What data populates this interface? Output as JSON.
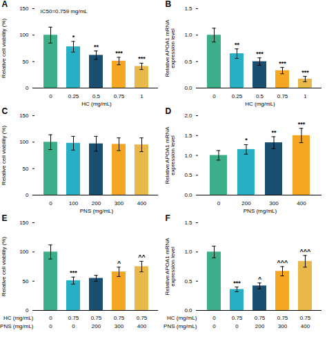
{
  "chart_data": [
    {
      "type": "bar",
      "title": "A",
      "annotation": "IC50=0.759 mg/mL",
      "xlabel": "HC (mg/mL)",
      "ylabel": "Relative cell viability (%)",
      "categories": [
        "0",
        "0.25",
        "0.5",
        "0.75",
        "1"
      ],
      "values": [
        100,
        78,
        62,
        51,
        41
      ],
      "errors": [
        15,
        10,
        8,
        7,
        6
      ],
      "colors": [
        "#3dae8a",
        "#29afc4",
        "#1b4f72",
        "#f5a623",
        "#e8b84b"
      ],
      "stars": [
        null,
        "*",
        "**",
        "***",
        "***"
      ],
      "ylim": [
        0,
        150
      ],
      "yticks": [
        0,
        50,
        100,
        150
      ]
    },
    {
      "type": "bar",
      "title": "B",
      "xlabel": "HC (mg/mL)",
      "ylabel": "Relative APOA1 mRNA\nexpression level",
      "categories": [
        "0",
        "0.25",
        "0.5",
        "0.75",
        "1"
      ],
      "values": [
        1.0,
        0.65,
        0.5,
        0.33,
        0.17
      ],
      "errors": [
        0.13,
        0.09,
        0.07,
        0.06,
        0.05
      ],
      "colors": [
        "#3dae8a",
        "#29afc4",
        "#1b4f72",
        "#f5a623",
        "#e8b84b"
      ],
      "stars": [
        null,
        "**",
        "***",
        "***",
        "***"
      ],
      "ylim": [
        0,
        1.5
      ],
      "yticks": [
        {
          "value": 0,
          "label": "0.0"
        },
        0.5,
        {
          "value": 1,
          "label": "1.0"
        },
        1.5
      ]
    },
    {
      "type": "bar",
      "title": "C",
      "xlabel": "PNS (mg/mL)",
      "ylabel": "Relative cell viability (%)",
      "categories": [
        "0",
        "100",
        "200",
        "300",
        "400"
      ],
      "values": [
        100,
        98,
        97,
        96,
        95
      ],
      "errors": [
        14,
        13,
        14,
        12,
        13
      ],
      "colors": [
        "#3dae8a",
        "#29afc4",
        "#1b4f72",
        "#f5a623",
        "#e8b84b"
      ],
      "stars": [
        null,
        null,
        null,
        null,
        null
      ],
      "ylim": [
        0,
        150
      ],
      "yticks": [
        0,
        50,
        100,
        150
      ]
    },
    {
      "type": "bar",
      "title": "D",
      "xlabel": "PNS (mg/mL)",
      "ylabel": "Relative APOA1 mRNA\nexpression level",
      "categories": [
        "0",
        "200",
        "300",
        "400"
      ],
      "values": [
        1.0,
        1.15,
        1.32,
        1.5
      ],
      "errors": [
        0.12,
        0.12,
        0.15,
        0.18
      ],
      "colors": [
        "#3dae8a",
        "#29afc4",
        "#1b4f72",
        "#f5a623"
      ],
      "stars": [
        null,
        "*",
        "**",
        "***"
      ],
      "ylim": [
        0,
        2.0
      ],
      "yticks": [
        {
          "value": 0,
          "label": "0.0"
        },
        0.5,
        {
          "value": 1,
          "label": "1.0"
        },
        1.5,
        {
          "value": 2,
          "label": "2.0"
        }
      ]
    },
    {
      "type": "bar",
      "title": "E",
      "xlabel": [
        "HC (mg/mL)",
        "PNS (mg/mL)"
      ],
      "ylabel": "Relative cell viability (%)",
      "categories": [
        [
          "0",
          "0"
        ],
        [
          "0.75",
          "0"
        ],
        [
          "0.75",
          "200"
        ],
        [
          "0.75",
          "300"
        ],
        [
          "0.75",
          "400"
        ]
      ],
      "values": [
        100,
        51,
        55,
        66,
        75
      ],
      "errors": [
        12,
        6,
        5,
        8,
        9
      ],
      "colors": [
        "#3dae8a",
        "#29afc4",
        "#1b4f72",
        "#f5a623",
        "#e8b84b"
      ],
      "stars": [
        null,
        "***",
        null,
        "^",
        "^^"
      ],
      "ylim": [
        0,
        150
      ],
      "yticks": [
        0,
        50,
        100,
        150
      ]
    },
    {
      "type": "bar",
      "title": "F",
      "xlabel": [
        "HC (mg/mL)",
        "PNS (mg/mL)"
      ],
      "ylabel": "Relative APOA1 mRNA\nexpression level",
      "categories": [
        [
          "0",
          "0"
        ],
        [
          "0.75",
          "0"
        ],
        [
          "0.75",
          "200"
        ],
        [
          "0.75",
          "300"
        ],
        [
          "0.75",
          "400"
        ]
      ],
      "values": [
        1.0,
        0.36,
        0.42,
        0.67,
        0.84
      ],
      "errors": [
        0.1,
        0.04,
        0.05,
        0.08,
        0.1
      ],
      "colors": [
        "#3dae8a",
        "#29afc4",
        "#1b4f72",
        "#f5a623",
        "#e8b84b"
      ],
      "stars": [
        null,
        "***",
        "^",
        "^^^",
        "^^^"
      ],
      "ylim": [
        0,
        1.5
      ],
      "yticks": [
        {
          "value": 0,
          "label": "0.0"
        },
        0.5,
        {
          "value": 1,
          "label": "1.0"
        },
        1.5
      ]
    }
  ]
}
